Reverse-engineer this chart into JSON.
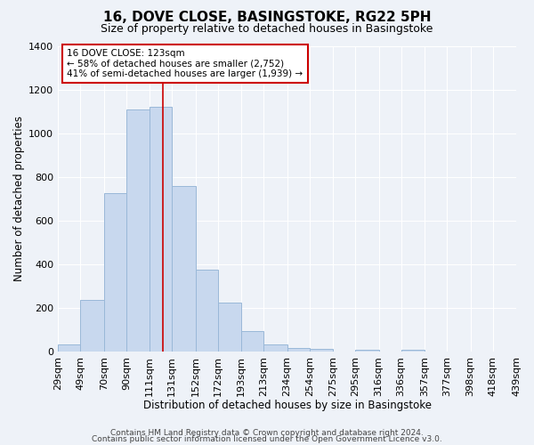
{
  "title": "16, DOVE CLOSE, BASINGSTOKE, RG22 5PH",
  "subtitle": "Size of property relative to detached houses in Basingstoke",
  "xlabel": "Distribution of detached houses by size in Basingstoke",
  "ylabel": "Number of detached properties",
  "bar_color": "#c8d8ee",
  "bar_edge_color": "#9ab8d8",
  "bin_edges": [
    29,
    49,
    70,
    90,
    111,
    131,
    152,
    172,
    193,
    213,
    234,
    254,
    275,
    295,
    316,
    336,
    357,
    377,
    398,
    418,
    439
  ],
  "bin_labels": [
    "29sqm",
    "49sqm",
    "70sqm",
    "90sqm",
    "111sqm",
    "131sqm",
    "152sqm",
    "172sqm",
    "193sqm",
    "213sqm",
    "234sqm",
    "254sqm",
    "275sqm",
    "295sqm",
    "316sqm",
    "336sqm",
    "357sqm",
    "377sqm",
    "398sqm",
    "418sqm",
    "439sqm"
  ],
  "counts": [
    35,
    240,
    725,
    1110,
    1120,
    760,
    375,
    225,
    95,
    35,
    20,
    15,
    0,
    10,
    0,
    10,
    0,
    0,
    0,
    0
  ],
  "property_line_x": 123,
  "property_line_color": "#cc0000",
  "annotation_line1": "16 DOVE CLOSE: 123sqm",
  "annotation_line2": "← 58% of detached houses are smaller (2,752)",
  "annotation_line3": "41% of semi-detached houses are larger (1,939) →",
  "annotation_box_color": "#cc0000",
  "ylim": [
    0,
    1400
  ],
  "footer1": "Contains HM Land Registry data © Crown copyright and database right 2024.",
  "footer2": "Contains public sector information licensed under the Open Government Licence v3.0.",
  "background_color": "#eef2f8",
  "grid_color": "#ffffff",
  "title_fontsize": 11,
  "subtitle_fontsize": 9,
  "footer_fontsize": 6.5
}
